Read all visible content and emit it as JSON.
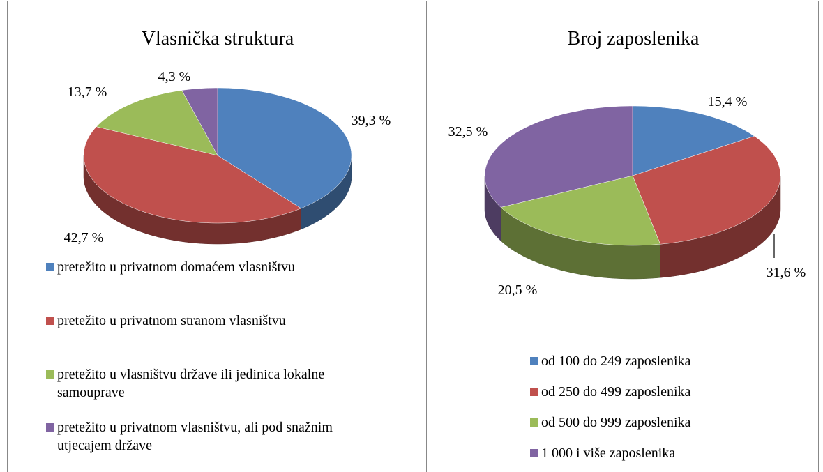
{
  "chart_data": [
    {
      "type": "pie3d",
      "title": "Vlasnička struktura",
      "categories": [
        "pretežito u privatnom domaćem vlasništvu",
        "pretežito u privatnom stranom vlasništvu",
        "pretežito u vlasništvu države ili jedinica lokalne samouprave",
        "pretežito u privatnom vlasništvu, ali pod snažnim utjecajem države"
      ],
      "values": [
        39.3,
        42.7,
        13.7,
        4.3
      ],
      "value_labels": [
        "39,3 %",
        "42,7 %",
        "13,7 %",
        "4,3 %"
      ],
      "colors": [
        "#4f81bd",
        "#c0504d",
        "#9bbb59",
        "#8064a2"
      ]
    },
    {
      "type": "pie3d",
      "title": "Broj zaposlenika",
      "categories": [
        "od 100 do 249 zaposlenika",
        "od 250 do 499 zaposlenika",
        "od 500 do 999 zaposlenika",
        "1 000 i više zaposlenika"
      ],
      "values": [
        15.4,
        31.6,
        20.5,
        32.5
      ],
      "value_labels": [
        "15,4 %",
        "31,6 %",
        "20,5 %",
        "32,5 %"
      ],
      "colors": [
        "#4f81bd",
        "#c0504d",
        "#9bbb59",
        "#8064a2"
      ]
    }
  ]
}
